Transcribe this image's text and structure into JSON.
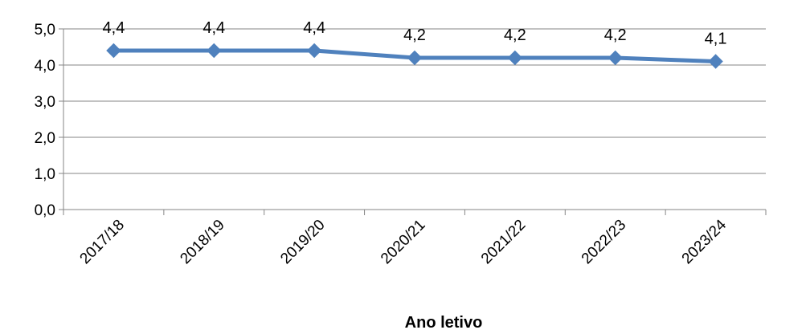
{
  "chart_data": {
    "type": "line",
    "title": "",
    "xlabel": "Ano letivo",
    "ylabel": "",
    "categories": [
      "2017/18",
      "2018/19",
      "2019/20",
      "2020/21",
      "2021/22",
      "2022/23",
      "2023/24"
    ],
    "series": [
      {
        "values": [
          4.4,
          4.4,
          4.4,
          4.2,
          4.2,
          4.2,
          4.1
        ],
        "color": "#4F81BD"
      }
    ],
    "data_labels": [
      "4,4",
      "4,4",
      "4,4",
      "4,2",
      "4,2",
      "4,2",
      "4,1"
    ],
    "yticks": [
      0,
      1,
      2,
      3,
      4,
      5
    ],
    "ytick_labels": [
      "0,0",
      "1,0",
      "2,0",
      "3,0",
      "4,0",
      "5,0"
    ],
    "ylim": [
      0,
      5
    ],
    "grid": true,
    "legend": "none"
  }
}
